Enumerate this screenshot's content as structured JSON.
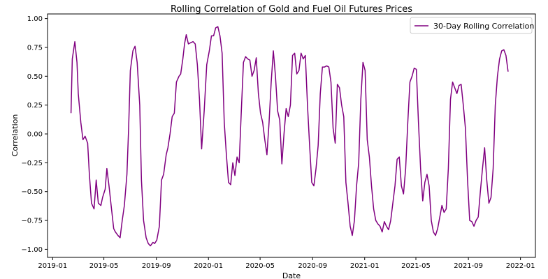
{
  "chart_data": {
    "type": "line",
    "title": "Rolling Correlation of Gold and Fuel Oil Futures Prices",
    "xlabel": "Date",
    "ylabel": "Correlation",
    "xlim": [
      "2018-12-20",
      "2022-02-05"
    ],
    "ylim": [
      -1.07,
      1.04
    ],
    "x_ticks": [
      {
        "date": "2019-01-01",
        "label": "2019-01"
      },
      {
        "date": "2019-05-01",
        "label": "2019-05"
      },
      {
        "date": "2019-09-01",
        "label": "2019-09"
      },
      {
        "date": "2020-01-01",
        "label": "2020-01"
      },
      {
        "date": "2020-05-01",
        "label": "2020-05"
      },
      {
        "date": "2020-09-01",
        "label": "2020-09"
      },
      {
        "date": "2021-01-01",
        "label": "2021-01"
      },
      {
        "date": "2021-05-01",
        "label": "2021-05"
      },
      {
        "date": "2021-09-01",
        "label": "2021-09"
      },
      {
        "date": "2022-01-01",
        "label": "2022-01"
      }
    ],
    "y_ticks": [
      {
        "value": 1.0,
        "label": "1.00"
      },
      {
        "value": 0.75,
        "label": "0.75"
      },
      {
        "value": 0.5,
        "label": "0.50"
      },
      {
        "value": 0.25,
        "label": "0.25"
      },
      {
        "value": 0.0,
        "label": "0.00"
      },
      {
        "value": -0.25,
        "label": "−0.25"
      },
      {
        "value": -0.5,
        "label": "−0.50"
      },
      {
        "value": -0.75,
        "label": "−0.75"
      },
      {
        "value": -1.0,
        "label": "−1.00"
      }
    ],
    "grid": false,
    "legend": "top-right",
    "series": [
      {
        "name": "30-Day Rolling Correlation",
        "color": "#800080",
        "points": [
          [
            "2019-02-13",
            0.18
          ],
          [
            "2019-02-16",
            0.65
          ],
          [
            "2019-02-22",
            0.8
          ],
          [
            "2019-02-27",
            0.62
          ],
          [
            "2019-03-02",
            0.35
          ],
          [
            "2019-03-08",
            0.1
          ],
          [
            "2019-03-13",
            -0.05
          ],
          [
            "2019-03-18",
            -0.02
          ],
          [
            "2019-03-24",
            -0.08
          ],
          [
            "2019-03-28",
            -0.35
          ],
          [
            "2019-04-02",
            -0.6
          ],
          [
            "2019-04-08",
            -0.65
          ],
          [
            "2019-04-13",
            -0.4
          ],
          [
            "2019-04-18",
            -0.6
          ],
          [
            "2019-04-24",
            -0.62
          ],
          [
            "2019-04-28",
            -0.55
          ],
          [
            "2019-05-04",
            -0.48
          ],
          [
            "2019-05-08",
            -0.3
          ],
          [
            "2019-05-13",
            -0.45
          ],
          [
            "2019-05-18",
            -0.62
          ],
          [
            "2019-05-24",
            -0.82
          ],
          [
            "2019-05-28",
            -0.85
          ],
          [
            "2019-06-03",
            -0.88
          ],
          [
            "2019-06-08",
            -0.9
          ],
          [
            "2019-06-13",
            -0.75
          ],
          [
            "2019-06-18",
            -0.62
          ],
          [
            "2019-06-24",
            -0.35
          ],
          [
            "2019-06-28",
            0.05
          ],
          [
            "2019-07-02",
            0.55
          ],
          [
            "2019-07-08",
            0.72
          ],
          [
            "2019-07-13",
            0.76
          ],
          [
            "2019-07-18",
            0.62
          ],
          [
            "2019-07-24",
            0.25
          ],
          [
            "2019-07-28",
            -0.4
          ],
          [
            "2019-08-02",
            -0.75
          ],
          [
            "2019-08-08",
            -0.9
          ],
          [
            "2019-08-13",
            -0.95
          ],
          [
            "2019-08-18",
            -0.97
          ],
          [
            "2019-08-24",
            -0.94
          ],
          [
            "2019-08-28",
            -0.95
          ],
          [
            "2019-09-02",
            -0.92
          ],
          [
            "2019-09-08",
            -0.8
          ],
          [
            "2019-09-13",
            -0.4
          ],
          [
            "2019-09-18",
            -0.35
          ],
          [
            "2019-09-24",
            -0.18
          ],
          [
            "2019-09-28",
            -0.12
          ],
          [
            "2019-10-03",
            0.0
          ],
          [
            "2019-10-08",
            0.15
          ],
          [
            "2019-10-13",
            0.18
          ],
          [
            "2019-10-18",
            0.45
          ],
          [
            "2019-10-24",
            0.5
          ],
          [
            "2019-10-28",
            0.52
          ],
          [
            "2019-11-02",
            0.65
          ],
          [
            "2019-11-06",
            0.78
          ],
          [
            "2019-11-10",
            0.86
          ],
          [
            "2019-11-15",
            0.78
          ],
          [
            "2019-11-20",
            0.79
          ],
          [
            "2019-11-26",
            0.8
          ],
          [
            "2019-12-01",
            0.78
          ],
          [
            "2019-12-06",
            0.6
          ],
          [
            "2019-12-11",
            0.3
          ],
          [
            "2019-12-16",
            -0.13
          ],
          [
            "2019-12-22",
            0.2
          ],
          [
            "2019-12-28",
            0.6
          ],
          [
            "2020-01-03",
            0.72
          ],
          [
            "2020-01-08",
            0.85
          ],
          [
            "2020-01-13",
            0.85
          ],
          [
            "2020-01-18",
            0.92
          ],
          [
            "2020-01-23",
            0.93
          ],
          [
            "2020-01-28",
            0.85
          ],
          [
            "2020-02-02",
            0.7
          ],
          [
            "2020-02-07",
            0.1
          ],
          [
            "2020-02-12",
            -0.18
          ],
          [
            "2020-02-17",
            -0.42
          ],
          [
            "2020-02-22",
            -0.44
          ],
          [
            "2020-02-27",
            -0.25
          ],
          [
            "2020-03-03",
            -0.36
          ],
          [
            "2020-03-08",
            -0.2
          ],
          [
            "2020-03-13",
            -0.25
          ],
          [
            "2020-03-18",
            0.2
          ],
          [
            "2020-03-23",
            0.62
          ],
          [
            "2020-03-28",
            0.67
          ],
          [
            "2020-04-02",
            0.65
          ],
          [
            "2020-04-07",
            0.64
          ],
          [
            "2020-04-12",
            0.5
          ],
          [
            "2020-04-17",
            0.55
          ],
          [
            "2020-04-22",
            0.66
          ],
          [
            "2020-04-27",
            0.35
          ],
          [
            "2020-05-02",
            0.18
          ],
          [
            "2020-05-07",
            0.1
          ],
          [
            "2020-05-12",
            -0.05
          ],
          [
            "2020-05-17",
            -0.18
          ],
          [
            "2020-05-22",
            0.1
          ],
          [
            "2020-05-27",
            0.45
          ],
          [
            "2020-06-01",
            0.72
          ],
          [
            "2020-06-06",
            0.5
          ],
          [
            "2020-06-11",
            0.2
          ],
          [
            "2020-06-16",
            0.12
          ],
          [
            "2020-06-21",
            -0.26
          ],
          [
            "2020-06-26",
            0.0
          ],
          [
            "2020-07-01",
            0.22
          ],
          [
            "2020-07-06",
            0.15
          ],
          [
            "2020-07-11",
            0.25
          ],
          [
            "2020-07-16",
            0.68
          ],
          [
            "2020-07-21",
            0.7
          ],
          [
            "2020-07-26",
            0.52
          ],
          [
            "2020-07-31",
            0.55
          ],
          [
            "2020-08-05",
            0.7
          ],
          [
            "2020-08-10",
            0.65
          ],
          [
            "2020-08-15",
            0.68
          ],
          [
            "2020-08-20",
            0.25
          ],
          [
            "2020-08-25",
            -0.1
          ],
          [
            "2020-08-30",
            -0.42
          ],
          [
            "2020-09-04",
            -0.45
          ],
          [
            "2020-09-09",
            -0.3
          ],
          [
            "2020-09-14",
            -0.1
          ],
          [
            "2020-09-19",
            0.35
          ],
          [
            "2020-09-24",
            0.58
          ],
          [
            "2020-09-29",
            0.58
          ],
          [
            "2020-10-04",
            0.59
          ],
          [
            "2020-10-09",
            0.58
          ],
          [
            "2020-10-14",
            0.45
          ],
          [
            "2020-10-19",
            0.05
          ],
          [
            "2020-10-24",
            -0.08
          ],
          [
            "2020-10-29",
            0.43
          ],
          [
            "2020-11-03",
            0.4
          ],
          [
            "2020-11-08",
            0.25
          ],
          [
            "2020-11-13",
            0.15
          ],
          [
            "2020-11-18",
            -0.42
          ],
          [
            "2020-11-23",
            -0.6
          ],
          [
            "2020-11-28",
            -0.8
          ],
          [
            "2020-12-03",
            -0.88
          ],
          [
            "2020-12-08",
            -0.75
          ],
          [
            "2020-12-13",
            -0.45
          ],
          [
            "2020-12-18",
            -0.25
          ],
          [
            "2020-12-23",
            0.3
          ],
          [
            "2020-12-28",
            0.62
          ],
          [
            "2021-01-02",
            0.55
          ],
          [
            "2021-01-07",
            -0.05
          ],
          [
            "2021-01-12",
            -0.2
          ],
          [
            "2021-01-17",
            -0.45
          ],
          [
            "2021-01-22",
            -0.65
          ],
          [
            "2021-01-27",
            -0.75
          ],
          [
            "2021-02-01",
            -0.78
          ],
          [
            "2021-02-06",
            -0.8
          ],
          [
            "2021-02-11",
            -0.85
          ],
          [
            "2021-02-16",
            -0.76
          ],
          [
            "2021-02-21",
            -0.8
          ],
          [
            "2021-02-26",
            -0.83
          ],
          [
            "2021-03-03",
            -0.75
          ],
          [
            "2021-03-08",
            -0.6
          ],
          [
            "2021-03-13",
            -0.45
          ],
          [
            "2021-03-18",
            -0.22
          ],
          [
            "2021-03-23",
            -0.2
          ],
          [
            "2021-03-28",
            -0.45
          ],
          [
            "2021-04-02",
            -0.52
          ],
          [
            "2021-04-07",
            -0.3
          ],
          [
            "2021-04-12",
            0.1
          ],
          [
            "2021-04-17",
            0.45
          ],
          [
            "2021-04-22",
            0.5
          ],
          [
            "2021-04-27",
            0.57
          ],
          [
            "2021-05-02",
            0.56
          ],
          [
            "2021-05-07",
            0.1
          ],
          [
            "2021-05-12",
            -0.3
          ],
          [
            "2021-05-17",
            -0.58
          ],
          [
            "2021-05-22",
            -0.42
          ],
          [
            "2021-05-27",
            -0.35
          ],
          [
            "2021-06-01",
            -0.45
          ],
          [
            "2021-06-06",
            -0.75
          ],
          [
            "2021-06-11",
            -0.85
          ],
          [
            "2021-06-16",
            -0.88
          ],
          [
            "2021-06-21",
            -0.82
          ],
          [
            "2021-06-26",
            -0.72
          ],
          [
            "2021-07-01",
            -0.62
          ],
          [
            "2021-07-06",
            -0.68
          ],
          [
            "2021-07-11",
            -0.65
          ],
          [
            "2021-07-16",
            -0.3
          ],
          [
            "2021-07-21",
            0.3
          ],
          [
            "2021-07-26",
            0.45
          ],
          [
            "2021-07-31",
            0.4
          ],
          [
            "2021-08-05",
            0.35
          ],
          [
            "2021-08-10",
            0.42
          ],
          [
            "2021-08-15",
            0.43
          ],
          [
            "2021-08-20",
            0.25
          ],
          [
            "2021-08-25",
            0.05
          ],
          [
            "2021-08-30",
            -0.4
          ],
          [
            "2021-09-04",
            -0.75
          ],
          [
            "2021-09-09",
            -0.76
          ],
          [
            "2021-09-14",
            -0.8
          ],
          [
            "2021-09-19",
            -0.75
          ],
          [
            "2021-09-24",
            -0.72
          ],
          [
            "2021-09-29",
            -0.5
          ],
          [
            "2021-10-04",
            -0.3
          ],
          [
            "2021-10-09",
            -0.12
          ],
          [
            "2021-10-14",
            -0.4
          ],
          [
            "2021-10-19",
            -0.6
          ],
          [
            "2021-10-24",
            -0.55
          ],
          [
            "2021-10-29",
            -0.3
          ],
          [
            "2021-11-03",
            0.25
          ],
          [
            "2021-11-08",
            0.5
          ],
          [
            "2021-11-13",
            0.65
          ],
          [
            "2021-11-18",
            0.72
          ],
          [
            "2021-11-23",
            0.73
          ],
          [
            "2021-11-28",
            0.68
          ],
          [
            "2021-12-03",
            0.54
          ]
        ]
      }
    ]
  }
}
